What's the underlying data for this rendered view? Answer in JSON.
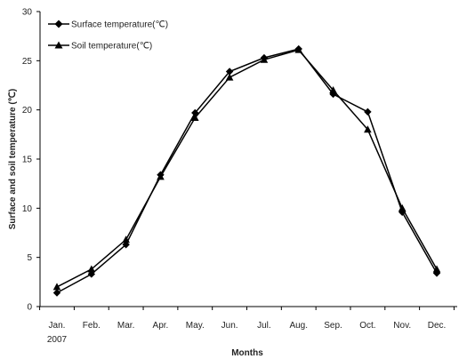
{
  "chart_data": {
    "type": "line",
    "title": "",
    "xlabel": "Months",
    "ylabel": "Surface and soil temperature (℃)",
    "categories": [
      "Jan.",
      "Feb.",
      "Mar.",
      "Apr.",
      "May.",
      "Jun.",
      "Jul.",
      "Aug.",
      "Sep.",
      "Oct.",
      "Nov.",
      "Dec."
    ],
    "x_sublabel": "2007",
    "ylim": [
      0,
      30
    ],
    "yticks": [
      0,
      5,
      10,
      15,
      20,
      25,
      30
    ],
    "grid": false,
    "legend_position": "top-left",
    "series": [
      {
        "name": "Surface temperature(℃)",
        "marker": "diamond",
        "values": [
          1.4,
          3.3,
          6.3,
          13.4,
          19.7,
          23.9,
          25.3,
          26.2,
          21.6,
          19.8,
          9.6,
          3.4
        ]
      },
      {
        "name": "Soil temperature(℃)",
        "marker": "triangle",
        "values": [
          2.0,
          3.8,
          6.8,
          13.2,
          19.2,
          23.3,
          25.1,
          26.1,
          22.0,
          18.0,
          10.0,
          3.8
        ]
      }
    ]
  }
}
